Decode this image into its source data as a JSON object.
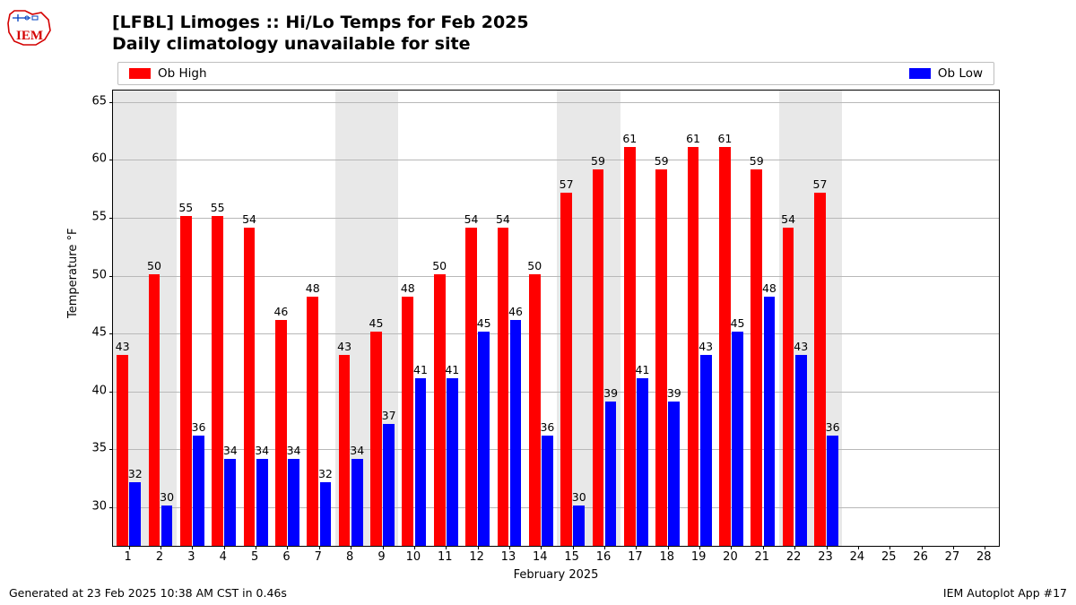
{
  "logo": {
    "text": "IEM",
    "text_color": "#d40000",
    "outline_color": "#d40000"
  },
  "title_line1": "[LFBL] Limoges :: Hi/Lo Temps for Feb 2025",
  "title_line2": "Daily climatology unavailable for site",
  "title_fontsize": 19,
  "legend": {
    "items": [
      {
        "label": "Ob High",
        "color": "#ff0000"
      },
      {
        "label": "Ob Low",
        "color": "#0000ff"
      }
    ],
    "border_color": "#bfbfbf",
    "background": "#ffffff"
  },
  "chart": {
    "type": "bar",
    "background_color": "#ffffff",
    "grid_color": "#b8b8b8",
    "weekend_band_color": "#e8e8e8",
    "weekend_days": [
      1,
      2,
      8,
      9,
      15,
      16,
      22,
      23
    ],
    "xlabel": "February 2025",
    "ylabel": "Temperature °F",
    "label_fontsize": 13,
    "xlim": [
      0.5,
      28.5
    ],
    "ylim": [
      26.5,
      66
    ],
    "yticks": [
      30,
      35,
      40,
      45,
      50,
      55,
      60,
      65
    ],
    "days": [
      1,
      2,
      3,
      4,
      5,
      6,
      7,
      8,
      9,
      10,
      11,
      12,
      13,
      14,
      15,
      16,
      17,
      18,
      19,
      20,
      21,
      22,
      23,
      24,
      25,
      26,
      27,
      28
    ],
    "bar_width": 0.36,
    "bar_offset": 0.2,
    "high": {
      "color": "#ff0000",
      "values": [
        43,
        50,
        55,
        55,
        54,
        46,
        48,
        43,
        45,
        48,
        50,
        54,
        54,
        50,
        57,
        59,
        61,
        59,
        61,
        61,
        59,
        54,
        57,
        null,
        null,
        null,
        null,
        null
      ]
    },
    "low": {
      "color": "#0000ff",
      "values": [
        32,
        30,
        36,
        34,
        34,
        34,
        32,
        34,
        37,
        41,
        41,
        45,
        46,
        36,
        30,
        39,
        41,
        39,
        43,
        45,
        48,
        43,
        36,
        null,
        null,
        null,
        null,
        null
      ]
    }
  },
  "footer_left": "Generated at 23 Feb 2025 10:38 AM CST in 0.46s",
  "footer_right": "IEM Autoplot App #17"
}
